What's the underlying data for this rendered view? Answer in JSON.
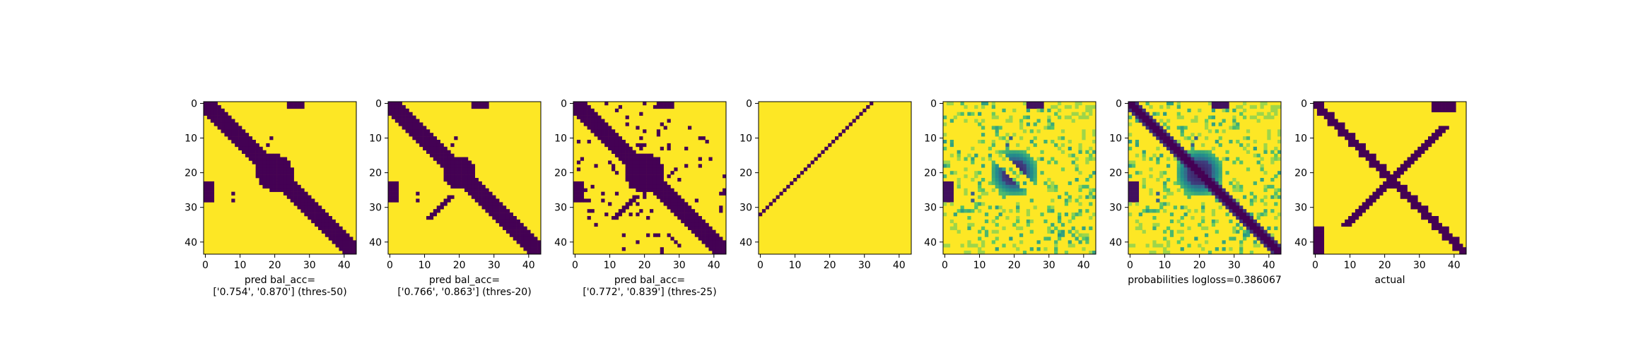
{
  "chart_data": [
    {
      "type": "heatmap",
      "panel": 1,
      "matrix_size": 44,
      "colormap": "viridis",
      "render": "binary_thres50",
      "xticks": [
        0,
        10,
        20,
        30,
        40
      ],
      "yticks": [
        0,
        10,
        20,
        30,
        40
      ],
      "xlabel_lines": [
        "pred bal_acc=",
        "['0.754', '0.870'] (thres-50)"
      ]
    },
    {
      "type": "heatmap",
      "panel": 2,
      "matrix_size": 44,
      "colormap": "viridis",
      "render": "binary_thres20",
      "xticks": [
        0,
        10,
        20,
        30,
        40
      ],
      "yticks": [
        0,
        10,
        20,
        30,
        40
      ],
      "xlabel_lines": [
        "pred bal_acc=",
        "['0.766', '0.863'] (thres-20)"
      ]
    },
    {
      "type": "heatmap",
      "panel": 3,
      "matrix_size": 44,
      "colormap": "viridis",
      "render": "binary_thres25",
      "xticks": [
        0,
        10,
        20,
        30,
        40
      ],
      "yticks": [
        0,
        10,
        20,
        30,
        40
      ],
      "xlabel_lines": [
        "pred bal_acc=",
        "['0.772', '0.839'] (thres-25)"
      ]
    },
    {
      "type": "heatmap",
      "panel": 4,
      "matrix_size": 44,
      "colormap": "viridis",
      "render": "anti_diagonal",
      "xticks": [
        0,
        10,
        20,
        30,
        40
      ],
      "yticks": [
        0,
        10,
        20,
        30,
        40
      ],
      "xlabel_lines": []
    },
    {
      "type": "heatmap",
      "panel": 5,
      "matrix_size": 44,
      "colormap": "viridis",
      "render": "probabilities_no_diag",
      "xticks": [
        0,
        10,
        20,
        30,
        40
      ],
      "yticks": [
        0,
        10,
        20,
        30,
        40
      ],
      "xlabel_lines": []
    },
    {
      "type": "heatmap",
      "panel": 6,
      "matrix_size": 44,
      "colormap": "viridis",
      "render": "probabilities",
      "xticks": [
        0,
        10,
        20,
        30,
        40
      ],
      "yticks": [
        0,
        10,
        20,
        30,
        40
      ],
      "xlabel_lines": [
        "probabilities logloss=0.386067"
      ]
    },
    {
      "type": "heatmap",
      "panel": 7,
      "matrix_size": 44,
      "colormap": "viridis",
      "render": "actual",
      "xticks": [
        0,
        10,
        20,
        30,
        40
      ],
      "yticks": [
        0,
        10,
        20,
        30,
        40
      ],
      "xlabel_lines": [
        "actual"
      ]
    }
  ],
  "colors": {
    "low": "#440154",
    "high": "#fde725",
    "mid1": "#31688e",
    "mid2": "#35b779",
    "mid3": "#90d743"
  }
}
